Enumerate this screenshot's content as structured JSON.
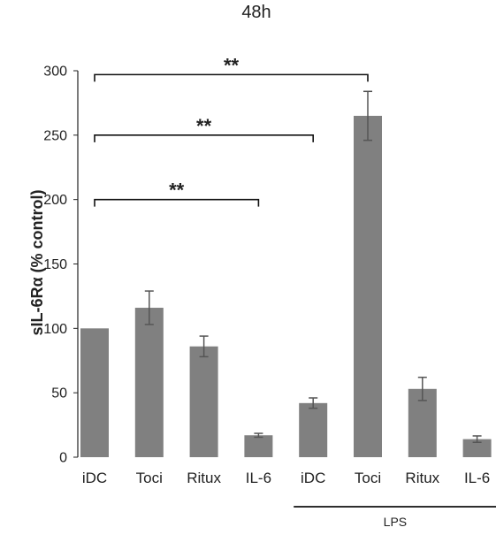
{
  "chart_data": {
    "type": "bar",
    "title": "48h",
    "xlabel": "",
    "ylabel": "sIL-6Rα (% control)",
    "ylim": [
      0,
      300
    ],
    "yticks": [
      0,
      50,
      100,
      150,
      200,
      250,
      300
    ],
    "categories": [
      "iDC",
      "Toci",
      "Ritux",
      "IL-6",
      "iDC",
      "Toci",
      "Ritux",
      "IL-6"
    ],
    "values": [
      100,
      116,
      86,
      17,
      42,
      265,
      53,
      14
    ],
    "errors": [
      0,
      13,
      8,
      1.5,
      4,
      19,
      9,
      2.5
    ],
    "bar_color": "#808080",
    "grid": false,
    "legend": null,
    "group_labels": [
      {
        "label": "LPS",
        "from": 4,
        "to": 7
      }
    ],
    "significance": [
      {
        "label": "**",
        "from": 0,
        "to": 3,
        "y": 200
      },
      {
        "label": "**",
        "from": 0,
        "to": 4,
        "y": 250
      },
      {
        "label": "**",
        "from": 0,
        "to": 5,
        "y": 297
      }
    ]
  }
}
